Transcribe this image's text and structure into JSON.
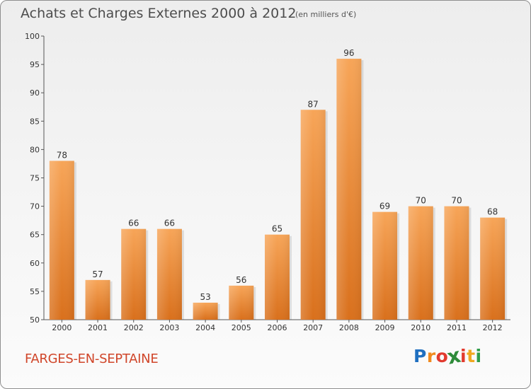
{
  "header": {
    "title": "Achats et Charges Externes 2000 à 2012",
    "unit": "(en milliers d'€)"
  },
  "footer": {
    "commune": "FARGES-EN-SEPTAINE",
    "logo_letters": [
      "P",
      "r",
      "o",
      "x",
      "i",
      "t",
      "i"
    ]
  },
  "colors": {
    "bar_light": "#f7a558",
    "bar_dark": "#d9701c",
    "commune_text": "#d0462a",
    "logo_letters": [
      "#1f6fc0",
      "#f08a1f",
      "#e23a2e",
      "#2e8b3a",
      "#e23a2e",
      "#f0a820",
      "#2e9c4a"
    ]
  },
  "chart_data": {
    "type": "bar",
    "title": "Achats et Charges Externes 2000 à 2012",
    "subtitle": "(en milliers d'€)",
    "categories": [
      "2000",
      "2001",
      "2002",
      "2003",
      "2004",
      "2005",
      "2006",
      "2007",
      "2008",
      "2009",
      "2010",
      "2011",
      "2012"
    ],
    "values": [
      78,
      57,
      66,
      66,
      53,
      56,
      65,
      87,
      96,
      69,
      70,
      70,
      68
    ],
    "ylim": [
      50,
      100
    ],
    "yticks": [
      50,
      55,
      60,
      65,
      70,
      75,
      80,
      85,
      90,
      95,
      100
    ],
    "xlabel": "",
    "ylabel": "",
    "grid": false,
    "legend": "none",
    "data_labels": true
  }
}
